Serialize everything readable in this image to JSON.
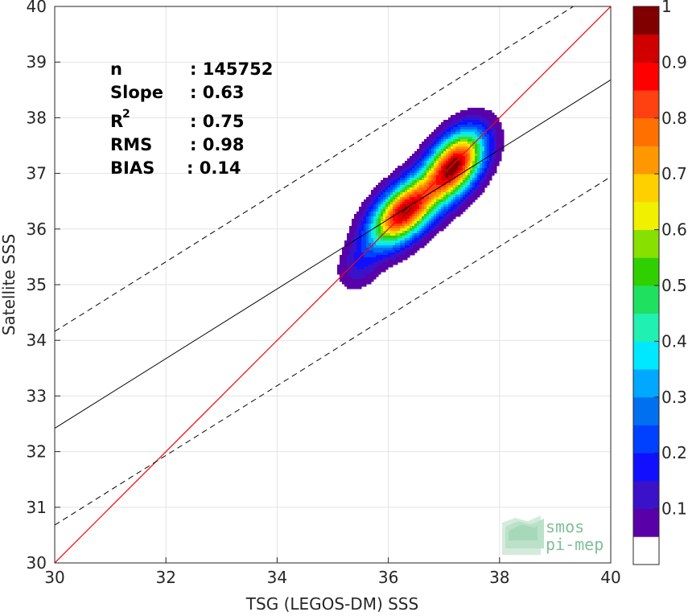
{
  "chart_data": {
    "type": "heatmap",
    "xlabel": "TSG (LEGOS-DM) SSS",
    "ylabel": "Satellite SSS",
    "xlim": [
      30,
      40
    ],
    "ylim": [
      30,
      40
    ],
    "xticks": [
      "30",
      "32",
      "34",
      "36",
      "38",
      "40"
    ],
    "yticks": [
      "30",
      "31",
      "32",
      "33",
      "34",
      "35",
      "36",
      "37",
      "38",
      "39",
      "40"
    ],
    "grid": true,
    "stats": {
      "n_label": "n",
      "n_value": ": 145752",
      "slope_label": "Slope",
      "slope_value": ": 0.63",
      "r2_label": "R",
      "r2_sup": "2",
      "r2_value": ": 0.75",
      "rms_label": "RMS",
      "rms_value": ": 0.98",
      "bias_label": "BIAS",
      "bias_value": ": 0.14"
    },
    "identity_line": {
      "slope": 1,
      "intercept": 0,
      "color": "#ff0000"
    },
    "regression_line": {
      "x": [
        30,
        40
      ],
      "y": [
        32.42,
        38.68
      ],
      "color": "#000000"
    },
    "dashed_lines": [
      {
        "x": [
          30,
          40
        ],
        "y": [
          34.16,
          40.42
        ]
      },
      {
        "x": [
          30,
          40
        ],
        "y": [
          30.68,
          36.94
        ]
      }
    ],
    "density_peaks": [
      {
        "x": 36.28,
        "y": 36.3,
        "sx": 0.42,
        "sy": 0.42,
        "rho": 0.55,
        "w": 1.0
      },
      {
        "x": 37.2,
        "y": 37.16,
        "sx": 0.36,
        "sy": 0.42,
        "rho": 0.45,
        "w": 1.0
      },
      {
        "x": 35.45,
        "y": 35.3,
        "sx": 0.25,
        "sy": 0.28,
        "rho": 0.2,
        "w": 0.12
      }
    ],
    "contour_levels": [
      0.05,
      0.1,
      0.15,
      0.2,
      0.25,
      0.3,
      0.35,
      0.4,
      0.45,
      0.5,
      0.55,
      0.6,
      0.65,
      0.7,
      0.75,
      0.8,
      0.85,
      0.9,
      0.95
    ],
    "colorbar": {
      "ticks": [
        "0.1",
        "0.2",
        "0.3",
        "0.4",
        "0.5",
        "0.6",
        "0.7",
        "0.8",
        "0.9",
        "1"
      ],
      "range": [
        0,
        1
      ],
      "colors": [
        "#ffffff",
        "#5a00a8",
        "#3a12c8",
        "#1010ff",
        "#0040ff",
        "#0070f0",
        "#00a8ff",
        "#00e8ff",
        "#20f0b0",
        "#20e060",
        "#30d000",
        "#88e000",
        "#f0f000",
        "#ffd000",
        "#ff9800",
        "#ff7000",
        "#ff4010",
        "#ff0000",
        "#d00000",
        "#800000"
      ]
    }
  },
  "logo": {
    "line1": "smos",
    "line2": "pi-mep"
  }
}
